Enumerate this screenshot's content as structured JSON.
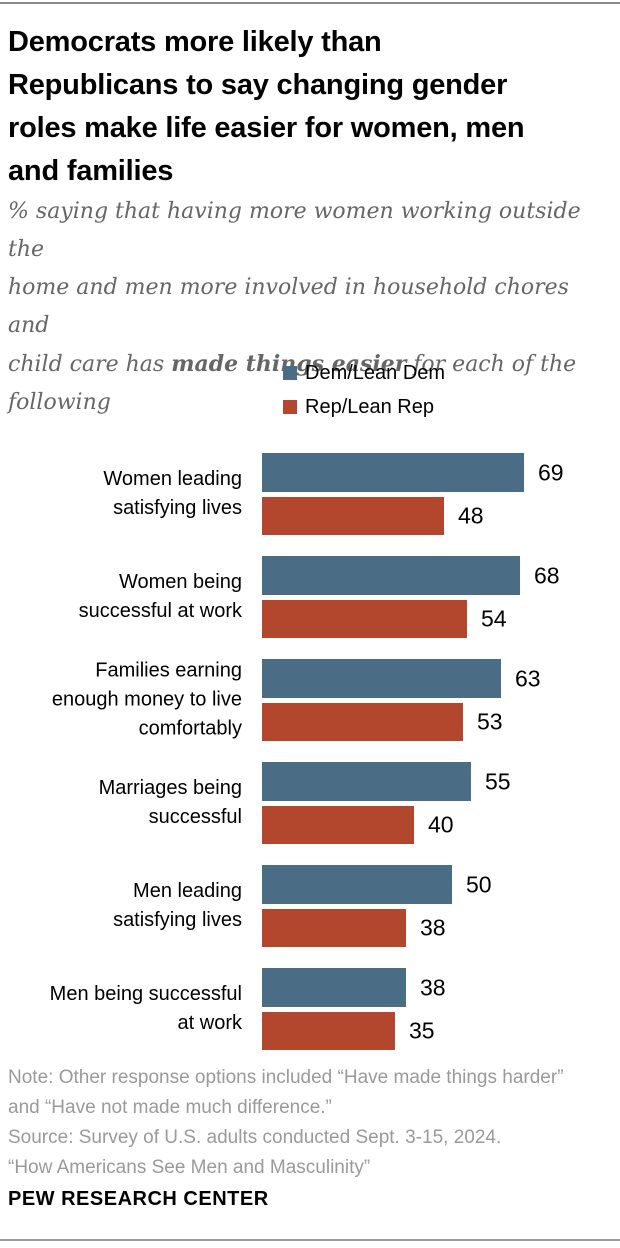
{
  "header": {
    "title": "Democrats more likely than\nRepublicans to say changing gender\nroles make life easier for women, men\nand families",
    "subtitle_part1": "% saying that having more women working outside the\nhome and men more involved in household chores and\nchild care has ",
    "subtitle_bold": "made things easier",
    "subtitle_part2": " for each of the\nfollowing"
  },
  "chart_data": {
    "type": "bar",
    "orientation": "horizontal",
    "xlim": [
      0,
      100
    ],
    "grid": false,
    "legend_position": "top-center",
    "value_labels": true,
    "categories": [
      "Women leading\nsatisfying lives",
      "Women being\nsuccessful at work",
      "Families earning\nenough money to live\ncomfortably",
      "Marriages being\nsuccessful",
      "Men leading\nsatisfying lives",
      "Men being successful\nat work"
    ],
    "series": [
      {
        "name": "Dem/Lean Dem",
        "color": "#4a6c85",
        "values": [
          69,
          68,
          63,
          55,
          50,
          38
        ]
      },
      {
        "name": "Rep/Lean Rep",
        "color": "#b2472e",
        "values": [
          48,
          54,
          53,
          40,
          38,
          35
        ]
      }
    ]
  },
  "footer": {
    "note": "Note: Other response options included “Have made things harder”\nand “Have not made much difference.”\nSource: Survey of U.S. adults conducted Sept. 3-15, 2024.\n“How Americans See Men and Masculinity”",
    "brand": "PEW RESEARCH CENTER"
  }
}
